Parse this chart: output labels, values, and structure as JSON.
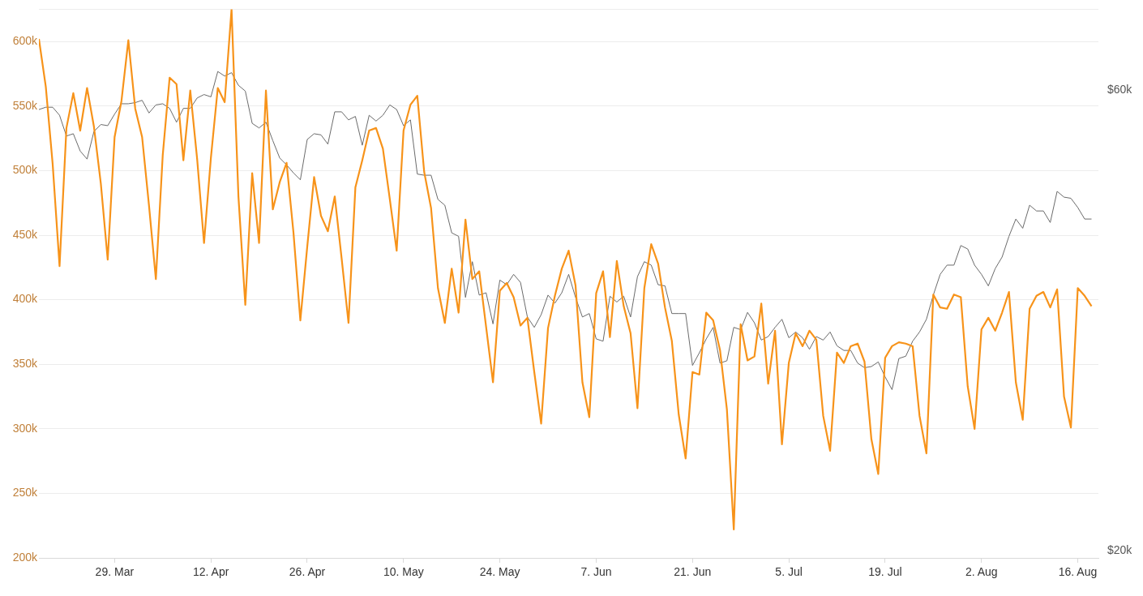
{
  "chart_data": {
    "type": "line",
    "grid": "y",
    "marker": "none",
    "x": [
      "--03-18",
      "--03-19",
      "--03-20",
      "--03-21",
      "--03-22",
      "--03-23",
      "--03-24",
      "--03-25",
      "--03-26",
      "--03-27",
      "--03-28",
      "--03-29",
      "--03-30",
      "--03-31",
      "--04-01",
      "--04-02",
      "--04-03",
      "--04-04",
      "--04-05",
      "--04-06",
      "--04-07",
      "--04-08",
      "--04-09",
      "--04-10",
      "--04-11",
      "--04-12",
      "--04-13",
      "--04-14",
      "--04-15",
      "--04-16",
      "--04-17",
      "--04-18",
      "--04-19",
      "--04-20",
      "--04-21",
      "--04-22",
      "--04-23",
      "--04-24",
      "--04-25",
      "--04-26",
      "--04-27",
      "--04-28",
      "--04-29",
      "--04-30",
      "--05-01",
      "--05-02",
      "--05-03",
      "--05-04",
      "--05-05",
      "--05-06",
      "--05-07",
      "--05-08",
      "--05-09",
      "--05-10",
      "--05-11",
      "--05-12",
      "--05-13",
      "--05-14",
      "--05-15",
      "--05-16",
      "--05-17",
      "--05-18",
      "--05-19",
      "--05-20",
      "--05-21",
      "--05-22",
      "--05-23",
      "--05-24",
      "--05-25",
      "--05-26",
      "--05-27",
      "--05-28",
      "--05-29",
      "--05-30",
      "--05-31",
      "--06-01",
      "--06-02",
      "--06-03",
      "--06-04",
      "--06-05",
      "--06-06",
      "--06-07",
      "--06-08",
      "--06-09",
      "--06-10",
      "--06-11",
      "--06-12",
      "--06-13",
      "--06-14",
      "--06-15",
      "--06-16",
      "--06-17",
      "--06-18",
      "--06-19",
      "--06-20",
      "--06-21",
      "--06-22",
      "--06-23",
      "--06-24",
      "--06-25",
      "--06-26",
      "--06-27",
      "--06-28",
      "--06-29",
      "--06-30",
      "--07-01",
      "--07-02",
      "--07-03",
      "--07-04",
      "--07-05",
      "--07-06",
      "--07-07",
      "--07-08",
      "--07-09",
      "--07-10",
      "--07-11",
      "--07-12",
      "--07-13",
      "--07-14",
      "--07-15",
      "--07-16",
      "--07-17",
      "--07-18",
      "--07-19",
      "--07-20",
      "--07-21",
      "--07-22",
      "--07-23",
      "--07-24",
      "--07-25",
      "--07-26",
      "--07-27",
      "--07-28",
      "--07-29",
      "--07-30",
      "--07-31",
      "--08-01",
      "--08-02",
      "--08-03",
      "--08-04",
      "--08-05",
      "--08-06",
      "--08-07",
      "--08-08",
      "--08-09",
      "--08-10",
      "--08-11",
      "--08-12",
      "--08-13",
      "--08-14",
      "--08-15",
      "--08-16",
      "--08-17",
      "--08-18"
    ],
    "series": [
      {
        "color": "#f7931a",
        "values": [
          602000,
          565000,
          505000,
          426000,
          533000,
          560000,
          531000,
          564000,
          534000,
          490000,
          431000,
          526000,
          554000,
          601000,
          548000,
          526000,
          473000,
          416000,
          512000,
          572000,
          567000,
          508000,
          562000,
          509000,
          444000,
          510000,
          564000,
          553000,
          625000,
          480000,
          396000,
          498000,
          444000,
          562000,
          470000,
          491000,
          506000,
          452000,
          384000,
          441000,
          495000,
          465000,
          453000,
          480000,
          432000,
          382000,
          487000,
          508000,
          531000,
          533000,
          517000,
          478000,
          438000,
          531000,
          551000,
          558000,
          499000,
          471000,
          409000,
          382000,
          424000,
          390000,
          462000,
          416000,
          422000,
          379000,
          336000,
          407000,
          413000,
          402000,
          380000,
          386000,
          344000,
          304000,
          378000,
          403000,
          424000,
          438000,
          411000,
          336000,
          309000,
          405000,
          422000,
          371000,
          430000,
          395000,
          374000,
          316000,
          409000,
          443000,
          428000,
          394000,
          368000,
          311000,
          277000,
          344000,
          342000,
          390000,
          384000,
          361000,
          315000,
          222000,
          381000,
          353000,
          356000,
          397000,
          335000,
          376000,
          288000,
          351000,
          374000,
          364000,
          376000,
          369000,
          310000,
          283000,
          359000,
          351000,
          364000,
          366000,
          352000,
          292000,
          265000,
          355000,
          364000,
          367000,
          366000,
          364000,
          310000,
          281000,
          404000,
          394000,
          393000,
          404000,
          402000,
          333000,
          300000,
          377000,
          386000,
          376000,
          390000,
          406000,
          336000,
          307000,
          393000,
          403000,
          406000,
          394000,
          408000,
          325000,
          301000,
          409000,
          403000,
          395000
        ]
      },
      {
        "color": "#6b6b6b",
        "axis": "y2",
        "values": [
          58300,
          58500,
          58500,
          57800,
          56000,
          56200,
          54700,
          54000,
          56400,
          57000,
          56900,
          57900,
          58800,
          58800,
          58900,
          59100,
          58000,
          58700,
          58800,
          58400,
          57200,
          58400,
          58400,
          59300,
          59600,
          59400,
          61600,
          61200,
          61500,
          60400,
          59900,
          57100,
          56700,
          57200,
          55600,
          54100,
          53500,
          52800,
          52200,
          55700,
          56200,
          56100,
          55300,
          58100,
          58100,
          57400,
          57700,
          55200,
          57800,
          57300,
          57800,
          58700,
          58300,
          56900,
          57400,
          52700,
          52600,
          52600,
          50500,
          50000,
          47600,
          47300,
          42000,
          45100,
          42200,
          42400,
          39700,
          43500,
          43100,
          44000,
          43300,
          40300,
          39400,
          40500,
          42200,
          41500,
          42400,
          44000,
          42000,
          40300,
          40600,
          38400,
          38200,
          42100,
          41600,
          42100,
          40300,
          43800,
          45100,
          44800,
          43100,
          43000,
          40600,
          40600,
          40600,
          36100,
          37200,
          38400,
          39400,
          36300,
          36500,
          39400,
          39200,
          40700,
          39800,
          38300,
          38600,
          39400,
          40100,
          38500,
          39000,
          38500,
          37500,
          38600,
          38300,
          39000,
          37800,
          37400,
          37400,
          36300,
          35900,
          36000,
          36400,
          35100,
          34000,
          36700,
          36900,
          38200,
          39000,
          40100,
          42200,
          44000,
          44800,
          44800,
          46500,
          46200,
          44800,
          44000,
          43000,
          44500,
          45500,
          47300,
          48800,
          48000,
          50000,
          49500,
          49500,
          48500,
          51200,
          50700,
          50600,
          49800,
          48800,
          48800
        ]
      }
    ],
    "xlim": [
      "--03-18",
      "--08-19"
    ],
    "xticks": [
      {
        "value": "--03-29",
        "label": "29. Mar"
      },
      {
        "value": "--04-12",
        "label": "12. Apr"
      },
      {
        "value": "--04-26",
        "label": "26. Apr"
      },
      {
        "value": "--05-10",
        "label": "10. May"
      },
      {
        "value": "--05-24",
        "label": "24. May"
      },
      {
        "value": "--06-07",
        "label": "7. Jun"
      },
      {
        "value": "--06-21",
        "label": "21. Jun"
      },
      {
        "value": "--07-05",
        "label": "5. Jul"
      },
      {
        "value": "--07-19",
        "label": "19. Jul"
      },
      {
        "value": "--08-02",
        "label": "2. Aug"
      },
      {
        "value": "--08-16",
        "label": "16. Aug"
      }
    ],
    "ylim": [
      200000,
      625000
    ],
    "yticks": [
      {
        "value": 200000,
        "label": "200k"
      },
      {
        "value": 250000,
        "label": "250k"
      },
      {
        "value": 300000,
        "label": "300k"
      },
      {
        "value": 350000,
        "label": "350k"
      },
      {
        "value": 400000,
        "label": "400k"
      },
      {
        "value": 450000,
        "label": "450k"
      },
      {
        "value": 500000,
        "label": "500k"
      },
      {
        "value": 550000,
        "label": "550k"
      },
      {
        "value": 600000,
        "label": "600k"
      }
    ],
    "y2lim": [
      19400,
      67000
    ],
    "y2ticks": [
      {
        "value": 20000,
        "label": "$20k"
      },
      {
        "value": 60000,
        "label": "$60k"
      }
    ]
  }
}
